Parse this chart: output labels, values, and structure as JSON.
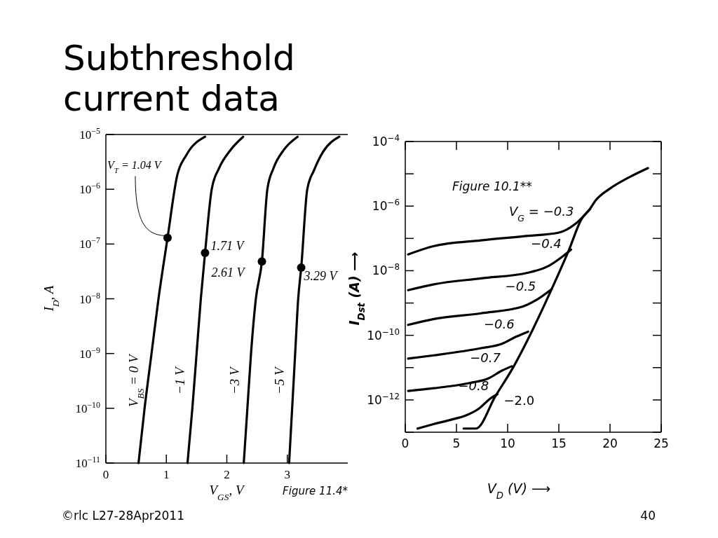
{
  "chart_data": [
    {
      "type": "line",
      "title": "Subthreshold current data",
      "xlabel": "V$_{GS}$, V",
      "ylabel": "I$_{D}$, A",
      "log": true,
      "xlim": [
        0,
        4
      ],
      "xticks": [
        0,
        1,
        2,
        3
      ],
      "ylim": [
        1e-11,
        1e-05
      ],
      "yticks": [
        {
          "value": 1e-11,
          "label": "10$^{−11}$"
        },
        {
          "value": 1e-10,
          "label": "10$^{−10}$"
        },
        {
          "value": 1e-09,
          "label": "10$^{−9}$"
        },
        {
          "value": 1e-08,
          "label": "10$^{−8}$"
        },
        {
          "value": 1e-07,
          "label": "10$^{−7}$"
        },
        {
          "value": 1e-06,
          "label": "10$^{−6}$"
        },
        {
          "value": 1e-05,
          "label": "10$^{−5}$"
        }
      ],
      "series": [
        {
          "name": "V$_{BS}$ = 0 V",
          "color": "#000000",
          "x": [
            0.54,
            0.64,
            0.755,
            0.87,
            1.02,
            1.18,
            1.33,
            1.64
          ],
          "values": [
            1e-11,
            1e-10,
            1e-09,
            1e-08,
            1.3e-07,
            1.8e-06,
            4.2e-06,
            9.1e-06
          ]
        },
        {
          "name": "−1 V",
          "color": "#000000",
          "x": [
            1.35,
            1.43,
            1.5,
            1.57,
            1.64,
            1.75,
            1.87,
            2.06,
            2.27
          ],
          "values": [
            1e-11,
            1e-10,
            1e-09,
            1e-08,
            6.9e-08,
            1e-06,
            2.4e-06,
            5.2e-06,
            9.1e-06
          ]
        },
        {
          "name": "−3 V",
          "color": "#000000",
          "x": [
            2.28,
            2.34,
            2.4,
            2.48,
            2.58,
            2.67,
            2.77,
            2.94,
            3.17
          ],
          "values": [
            1e-11,
            1e-10,
            1e-09,
            1e-08,
            4.8e-08,
            1e-06,
            2.4e-06,
            5.2e-06,
            9.1e-06
          ]
        },
        {
          "name": "−5 V",
          "color": "#000000",
          "x": [
            3.03,
            3.08,
            3.13,
            3.18,
            3.23,
            3.33,
            3.44,
            3.59,
            3.86
          ],
          "values": [
            1e-11,
            1e-10,
            1e-09,
            1e-08,
            3.7e-08,
            1e-06,
            2.2e-06,
            4.8e-06,
            9.1e-06
          ]
        },
        {
          "type": "scatter",
          "color": "#000000",
          "x": [
            1.02,
            1.64,
            2.58,
            3.23
          ],
          "values": [
            1.3e-07,
            6.9e-08,
            4.8e-08,
            3.7e-08
          ]
        }
      ],
      "annotations": [
        {
          "text": "V$_{T}$ = 1.04 V",
          "x": 1.02,
          "y": 1.3e-07
        },
        {
          "text": "1.71 V",
          "x": 1.64,
          "y": 6.9e-08
        },
        {
          "text": "2.61 V",
          "x": 2.58,
          "y": 4.8e-08
        },
        {
          "text": "3.29 V",
          "x": 3.23,
          "y": 3.7e-08
        },
        "Figure 11.4*",
        "©rlc L27-28Apr2011"
      ]
    },
    {
      "type": "line",
      "xlabel": "V$_{D}$ (V) ⟶",
      "ylabel": "I$_{Dst}$ (A) ⟶",
      "log": true,
      "xlim": [
        0,
        25
      ],
      "xticks": [
        0,
        5,
        10,
        15,
        20,
        25
      ],
      "ylim": [
        1e-13,
        0.0001
      ],
      "yticks": [
        {
          "value": 1e-13,
          "label": null
        },
        {
          "value": 1e-12,
          "label": "10$^{−12}$"
        },
        {
          "value": 1e-11,
          "label": null
        },
        {
          "value": 1e-10,
          "label": "10$^{−10}$"
        },
        {
          "value": 1e-09,
          "label": null
        },
        {
          "value": 1e-08,
          "label": "10$^{−8}$"
        },
        {
          "value": 1e-07,
          "label": null
        },
        {
          "value": 1e-06,
          "label": "10$^{−6}$"
        },
        {
          "value": 1e-05,
          "label": null
        },
        {
          "value": 0.0001,
          "label": "10$^{−4}$"
        }
      ],
      "series": [
        {
          "name": "V$_{G}$ = −0.3",
          "color": "#000000",
          "x": [
            0.28,
            2.8,
            7.4,
            12.0,
            14.95,
            16.6,
            18.05
          ],
          "values": [
            3.2e-08,
            5.8e-08,
            8.7e-08,
            1.2e-07,
            1.5e-07,
            2.8e-07,
            8.1e-07
          ]
        },
        {
          "name": "−0.4",
          "color": "#000000",
          "x": [
            0.28,
            2.8,
            7.4,
            12.0,
            14.0,
            15.4,
            16.2
          ],
          "values": [
            2.5e-09,
            3.8e-09,
            5.8e-09,
            8.7e-09,
            1.4e-08,
            2.8e-08,
            4.5e-08
          ]
        },
        {
          "name": "−0.5",
          "color": "#000000",
          "x": [
            0.28,
            2.8,
            7.4,
            11.5,
            12.9,
            14.3
          ],
          "values": [
            2.1e-10,
            3.2e-10,
            4.8e-10,
            7.8e-10,
            1.3e-09,
            2.7e-09
          ]
        },
        {
          "name": "−0.6",
          "color": "#000000",
          "x": [
            0.28,
            2.8,
            7.4,
            9.45,
            10.8,
            12.0
          ],
          "values": [
            1.9e-11,
            2.4e-11,
            4e-11,
            5.5e-11,
            9e-11,
            1.3e-10
          ]
        },
        {
          "name": "−0.7",
          "color": "#000000",
          "x": [
            0.28,
            2.8,
            6.2,
            8.1,
            9.45,
            10.4
          ],
          "values": [
            1.9e-12,
            2.3e-12,
            3.3e-12,
            4.6e-12,
            8.1e-12,
            1.1e-11
          ]
        },
        {
          "name": "−0.8",
          "color": "#000000",
          "x": [
            1.2,
            2.8,
            4.6,
            5.8,
            7.2,
            8.3,
            9.0
          ],
          "values": [
            1.3e-13,
            1.8e-13,
            2.5e-13,
            3.2e-13,
            5.4e-13,
            1.1e-12,
            1.5e-12
          ]
        },
        {
          "name": "−2.0",
          "color": "#000000",
          "x": [
            5.7,
            6.9,
            8.8,
            10.6,
            12.4,
            14.3,
            16.0,
            17.2,
            18.0,
            18.6,
            20.0,
            21.8,
            23.7
          ],
          "values": [
            1.3e-13,
            1.3e-13,
            1.3e-12,
            1.1e-11,
            1.4e-10,
            2.7e-09,
            4.5e-08,
            3.9e-07,
            7.9e-07,
            1.5e-06,
            3.5e-06,
            7.6e-06,
            1.5e-05
          ]
        }
      ],
      "annotations": [
        "Figure 10.1**",
        "40"
      ]
    }
  ]
}
